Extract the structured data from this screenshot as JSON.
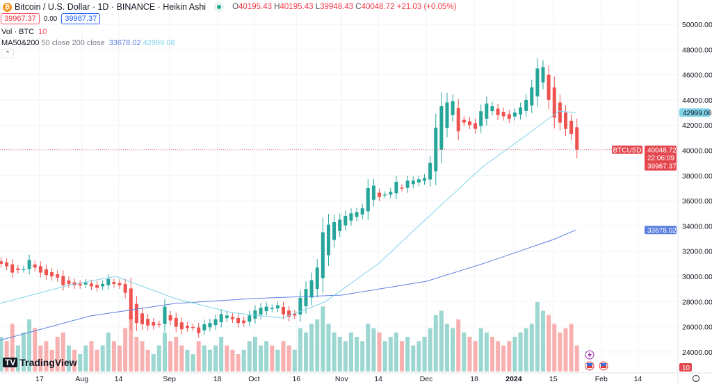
{
  "header": {
    "symbol_icon": "bitcoin-icon",
    "title": "Bitcoin / U.S. Dollar · 1D · BINANCE · Heikin Ashi",
    "market_status": "market-open-dot",
    "o_label": "O",
    "o": "40195.43",
    "h_label": "H",
    "h": "40195.43",
    "l_label": "L",
    "l": "39948.43",
    "c_label": "C",
    "c": "40048.72",
    "change": "+21.03 (+0.05%)",
    "sell": "39967.37",
    "spread": "0.00",
    "buy": "39967.37"
  },
  "vol": {
    "label": "Vol · BTC",
    "value": "10"
  },
  "ma": {
    "label": "MA50&200",
    "params": "50 close 200 close",
    "v200": "33678.02",
    "v50": "42999.08"
  },
  "collapse_icon": "chevron-up-icon",
  "logo": "TradingView",
  "price_labels": {
    "symbol": "BTCUSD",
    "last": "40048.72",
    "countdown": "22:06:09",
    "bid": "39967.37",
    "ma50": "42999.08",
    "ma200": "33678.02",
    "vol": "10"
  },
  "colors": {
    "up": "#26a69a",
    "down": "#ef5350",
    "ma50": "#7fd3e9",
    "ma200": "#5b7fe0",
    "last": "#e5474f"
  },
  "settings_icon": "settings-icon",
  "chart_data": {
    "type": "candlestick",
    "style": "Heikin Ashi",
    "grid": true,
    "ylim": [
      23000,
      50500
    ],
    "y_ticks": [
      24000,
      26000,
      28000,
      30000,
      32000,
      34000,
      36000,
      38000,
      40000,
      42000,
      44000,
      46000,
      48000,
      50000
    ],
    "x_ticks": [
      {
        "label": "17",
        "date": "2023-07-17"
      },
      {
        "label": "Aug",
        "date": "2023-08-01"
      },
      {
        "label": "14",
        "date": "2023-08-14"
      },
      {
        "label": "Sep",
        "date": "2023-09-01"
      },
      {
        "label": "18",
        "date": "2023-09-18"
      },
      {
        "label": "Oct",
        "date": "2023-10-01"
      },
      {
        "label": "16",
        "date": "2023-10-16"
      },
      {
        "label": "Nov",
        "date": "2023-11-01"
      },
      {
        "label": "14",
        "date": "2023-11-14"
      },
      {
        "label": "Dec",
        "date": "2023-12-01"
      },
      {
        "label": "18",
        "date": "2023-12-18"
      },
      {
        "label": "2024",
        "date": "2024-01-01"
      },
      {
        "label": "15",
        "date": "2024-01-15"
      },
      {
        "label": "Feb",
        "date": "2024-02-01"
      },
      {
        "label": "14",
        "date": "2024-02-14"
      }
    ],
    "start_date": "2023-07-03",
    "step_days": 2,
    "closes": [
      31000,
      30800,
      30300,
      30500,
      30600,
      31300,
      30700,
      30300,
      30100,
      30000,
      29900,
      29300,
      29400,
      29300,
      29300,
      29500,
      29200,
      29100,
      29400,
      29800,
      29400,
      29300,
      28700,
      26600,
      26300,
      26200,
      26100,
      26100,
      26200,
      27600,
      26500,
      26000,
      25800,
      25900,
      25900,
      25500,
      26200,
      26300,
      26600,
      27000,
      26900,
      26600,
      26300,
      26300,
      26900,
      27300,
      27500,
      27600,
      27500,
      27700,
      27000,
      26800,
      26900,
      28300,
      29000,
      29700,
      30700,
      33500,
      34100,
      34300,
      34500,
      34800,
      35000,
      35100,
      35400,
      37000,
      37200,
      36300,
      36500,
      36700,
      37500,
      37000,
      37600,
      37600,
      37700,
      37800,
      39000,
      41800,
      43500,
      43800,
      43900,
      41500,
      42200,
      42000,
      41700,
      43100,
      43700,
      43500,
      42800,
      42700,
      42500,
      43000,
      43400,
      44000,
      45000,
      46500,
      46600,
      44000,
      42600,
      42200,
      41700,
      41300,
      40048
    ],
    "volumes": [
      40,
      35,
      55,
      30,
      45,
      60,
      50,
      30,
      35,
      25,
      40,
      45,
      30,
      25,
      20,
      30,
      35,
      25,
      30,
      45,
      35,
      30,
      50,
      65,
      40,
      35,
      25,
      20,
      30,
      45,
      35,
      40,
      30,
      25,
      20,
      35,
      30,
      25,
      30,
      40,
      30,
      25,
      20,
      25,
      35,
      40,
      30,
      35,
      30,
      25,
      35,
      30,
      25,
      50,
      45,
      55,
      60,
      75,
      55,
      45,
      40,
      35,
      45,
      40,
      35,
      55,
      50,
      45,
      35,
      40,
      45,
      35,
      40,
      30,
      35,
      40,
      50,
      65,
      70,
      55,
      50,
      60,
      45,
      40,
      35,
      50,
      45,
      40,
      35,
      30,
      35,
      40,
      45,
      50,
      55,
      80,
      70,
      65,
      55,
      45,
      50,
      55,
      30
    ],
    "ma200": [
      [
        "2023-07-03",
        24930
      ],
      [
        "2023-08-04",
        26860
      ],
      [
        "2023-09-03",
        27850
      ],
      [
        "2023-10-01",
        28240
      ],
      [
        "2023-11-01",
        28510
      ],
      [
        "2023-12-01",
        29610
      ],
      [
        "2023-12-21",
        31000
      ],
      [
        "2024-01-15",
        32920
      ],
      [
        "2024-01-23",
        33678.02
      ]
    ],
    "ma50": [
      [
        "2023-07-03",
        27850
      ],
      [
        "2023-07-28",
        29340
      ],
      [
        "2023-08-13",
        30000
      ],
      [
        "2023-09-03",
        28240
      ],
      [
        "2023-09-23",
        27130
      ],
      [
        "2023-10-11",
        26690
      ],
      [
        "2023-10-26",
        27960
      ],
      [
        "2023-11-14",
        30990
      ],
      [
        "2023-12-01",
        34570
      ],
      [
        "2023-12-21",
        38700
      ],
      [
        "2024-01-07",
        41460
      ],
      [
        "2024-01-17",
        43110
      ],
      [
        "2024-01-23",
        42999.08
      ]
    ]
  }
}
